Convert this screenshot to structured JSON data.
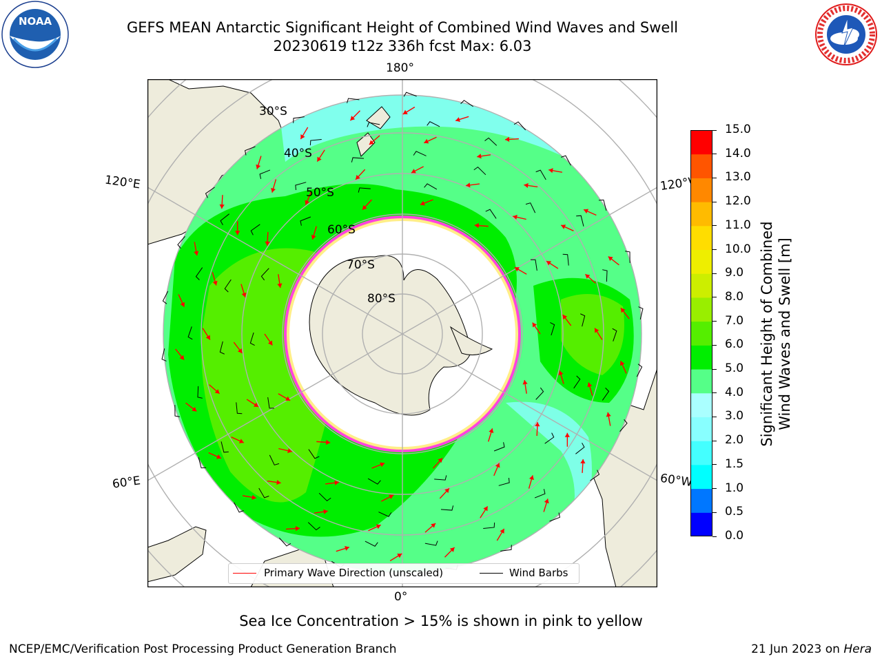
{
  "title": {
    "line1": "GEFS MEAN Antarctic Significant Height of Combined Wind Waves and Swell",
    "line2": "20230619 t12z 336h fcst   Max: 6.03"
  },
  "logos": {
    "left": "NOAA",
    "left_ring_text": "NATIONAL OCEANIC AND ATMOSPHERIC ADMINISTRATION · U.S. DEPARTMENT OF COMMERCE",
    "right_ring_text": "NATIONAL WEATHER SERVICE"
  },
  "map": {
    "projection": "south-polar-stereographic",
    "longitude_labels": {
      "top": "180°",
      "bottom": "0°",
      "upper_left": "120°E",
      "upper_right": "120°W",
      "lower_left": "60°E",
      "lower_right": "60°W"
    },
    "latitude_labels": [
      "30°S",
      "40°S",
      "50°S",
      "60°S",
      "70°S",
      "80°S"
    ],
    "colors": {
      "land": "#eeecdc",
      "ice_shelf": "#ffffff",
      "sea_ice": "#ff44dd",
      "grid": "#b0b0b0",
      "arrow": "#ff0000",
      "barb": "#000000"
    }
  },
  "legend": {
    "primary_wave": "Primary Wave Direction (unscaled)",
    "wind_barbs": "Wind Barbs"
  },
  "colorbar": {
    "label_line1": "Significant Height of Combined",
    "label_line2": "Wind Waves and Swell [m]",
    "bounds": [
      0.0,
      0.5,
      1.0,
      1.5,
      2.0,
      3.0,
      4.0,
      5.0,
      6.0,
      7.0,
      8.0,
      9.0,
      10.0,
      11.0,
      12.0,
      13.0,
      14.0,
      15.0
    ],
    "tick_labels": [
      "0.0",
      "0.5",
      "1.0",
      "1.5",
      "2.0",
      "3.0",
      "4.0",
      "5.0",
      "6.0",
      "7.0",
      "8.0",
      "9.0",
      "10.0",
      "11.0",
      "12.0",
      "13.0",
      "14.0",
      "15.0"
    ],
    "colors": [
      "#0000ff",
      "#0077ff",
      "#00ffff",
      "#44ffff",
      "#88ffff",
      "#aaffff",
      "#55ff88",
      "#00ee00",
      "#55ee00",
      "#99ee00",
      "#ccee00",
      "#eeee00",
      "#ffdd00",
      "#ffbb00",
      "#ff8800",
      "#ff5500",
      "#ff0000"
    ]
  },
  "subtitle": "Sea Ice Concentration > 15% is shown in pink to yellow",
  "footer": {
    "left": "NCEP/EMC/Verification Post Processing Product Generation Branch",
    "right_date": "21 Jun 2023 on ",
    "right_machine": "Hera"
  }
}
